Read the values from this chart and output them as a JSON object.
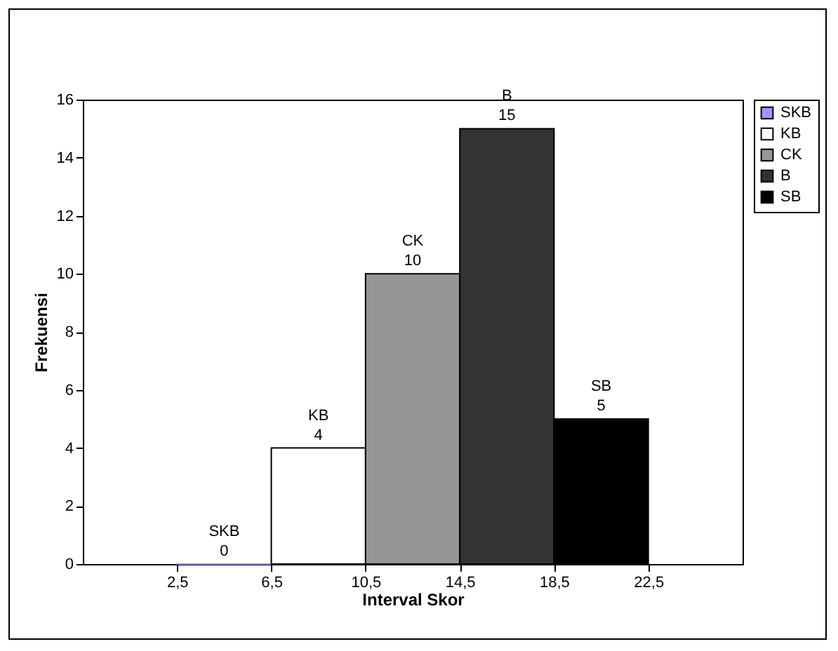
{
  "chart_data": {
    "type": "bar",
    "xlabel": "Interval Skor",
    "ylabel": "Frekuensi",
    "series": [
      {
        "name": "SKB",
        "color": "#9999ff",
        "x": [
          4.5
        ],
        "values": [
          0
        ]
      },
      {
        "name": "KB",
        "color": "#ffffff",
        "x": [
          8.5
        ],
        "values": [
          4
        ]
      },
      {
        "name": "CK",
        "color": "#969696",
        "x": [
          12.5
        ],
        "values": [
          10
        ]
      },
      {
        "name": "B",
        "color": "#333333",
        "x": [
          16.5
        ],
        "values": [
          15
        ]
      },
      {
        "name": "SB",
        "color": "#000000",
        "x": [
          20.5
        ],
        "values": [
          5
        ]
      }
    ],
    "xlim": [
      -1.5,
      26.5
    ],
    "xticks": [
      {
        "value": 2.5,
        "label": "2,5"
      },
      {
        "value": 6.5,
        "label": "6,5"
      },
      {
        "value": 10.5,
        "label": "10,5"
      },
      {
        "value": 14.5,
        "label": "14,5"
      },
      {
        "value": 18.5,
        "label": "18,5"
      },
      {
        "value": 22.5,
        "label": "22,5"
      }
    ],
    "ylim": [
      0,
      16
    ],
    "yticks": [
      0,
      2,
      4,
      6,
      8,
      10,
      12,
      14,
      16
    ],
    "data_labels": true,
    "grid": false,
    "legend": "top right"
  }
}
